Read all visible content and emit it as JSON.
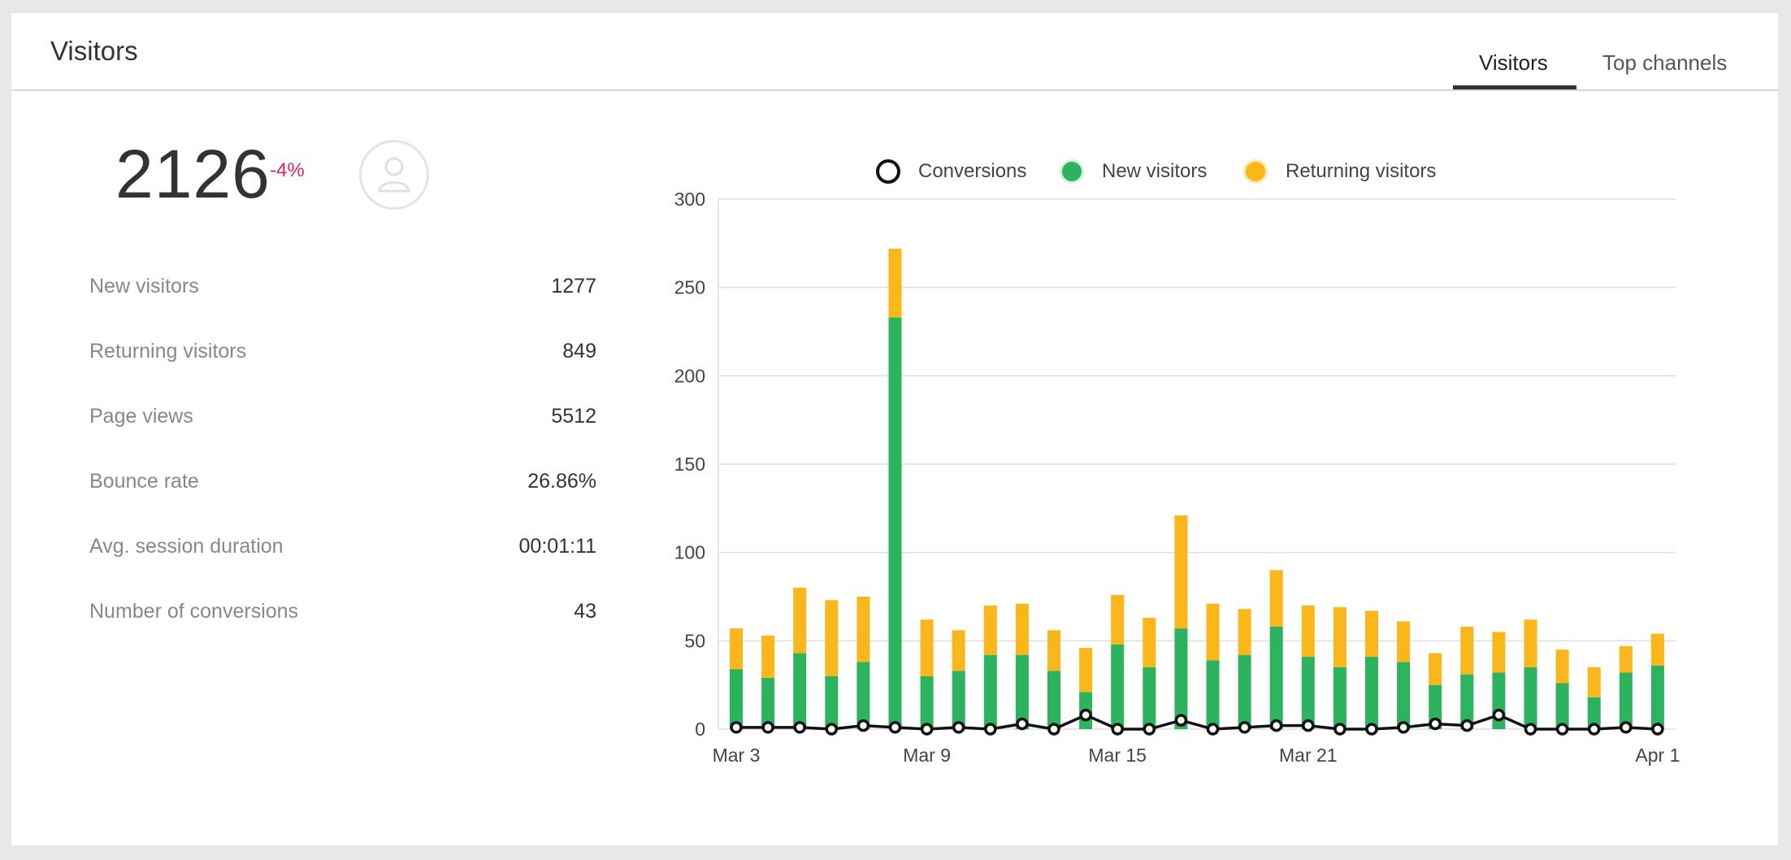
{
  "header": {
    "title": "Visitors",
    "tabs": [
      {
        "label": "Visitors",
        "active": true
      },
      {
        "label": "Top channels",
        "active": false
      }
    ]
  },
  "summary": {
    "total": "2126",
    "change": "-4%",
    "avatar_icon": "user-icon"
  },
  "stats": [
    {
      "label": "New visitors",
      "value": "1277"
    },
    {
      "label": "Returning visitors",
      "value": "849"
    },
    {
      "label": "Page views",
      "value": "5512"
    },
    {
      "label": "Bounce rate",
      "value": "26.86%"
    },
    {
      "label": "Avg. session duration",
      "value": "00:01:11"
    },
    {
      "label": "Number of conversions",
      "value": "43"
    }
  ],
  "colors": {
    "new_visitors": "#2bb45d",
    "returning_visitors": "#fbb619",
    "conversions": "#111111",
    "negative": "#e0245e"
  },
  "chart_data": {
    "type": "bar",
    "stacked": true,
    "x_tick_labels": [
      "Mar 3",
      "Mar 9",
      "Mar 15",
      "Mar 21",
      "Apr 1"
    ],
    "ylim": [
      0,
      300
    ],
    "y_ticks": [
      0,
      50,
      100,
      150,
      200,
      250,
      300
    ],
    "grid": true,
    "legend_placement": "top-center",
    "series": [
      {
        "name": "New visitors",
        "type": "bar",
        "values": [
          34,
          29,
          43,
          30,
          38,
          233,
          30,
          33,
          42,
          42,
          33,
          21,
          48,
          35,
          57,
          39,
          42,
          58,
          41,
          35,
          41,
          38,
          25,
          31,
          32,
          35,
          26,
          18,
          32,
          36
        ]
      },
      {
        "name": "Returning visitors",
        "type": "bar",
        "values": [
          23,
          24,
          37,
          43,
          37,
          39,
          32,
          23,
          28,
          29,
          23,
          25,
          28,
          28,
          64,
          32,
          26,
          32,
          29,
          34,
          26,
          23,
          18,
          27,
          23,
          27,
          19,
          17,
          15,
          18
        ]
      },
      {
        "name": "Conversions",
        "type": "line",
        "values": [
          1,
          1,
          1,
          0,
          2,
          1,
          0,
          1,
          0,
          3,
          0,
          8,
          0,
          0,
          5,
          0,
          1,
          2,
          2,
          0,
          0,
          1,
          3,
          2,
          8,
          0,
          0,
          0,
          1,
          0
        ]
      }
    ]
  }
}
